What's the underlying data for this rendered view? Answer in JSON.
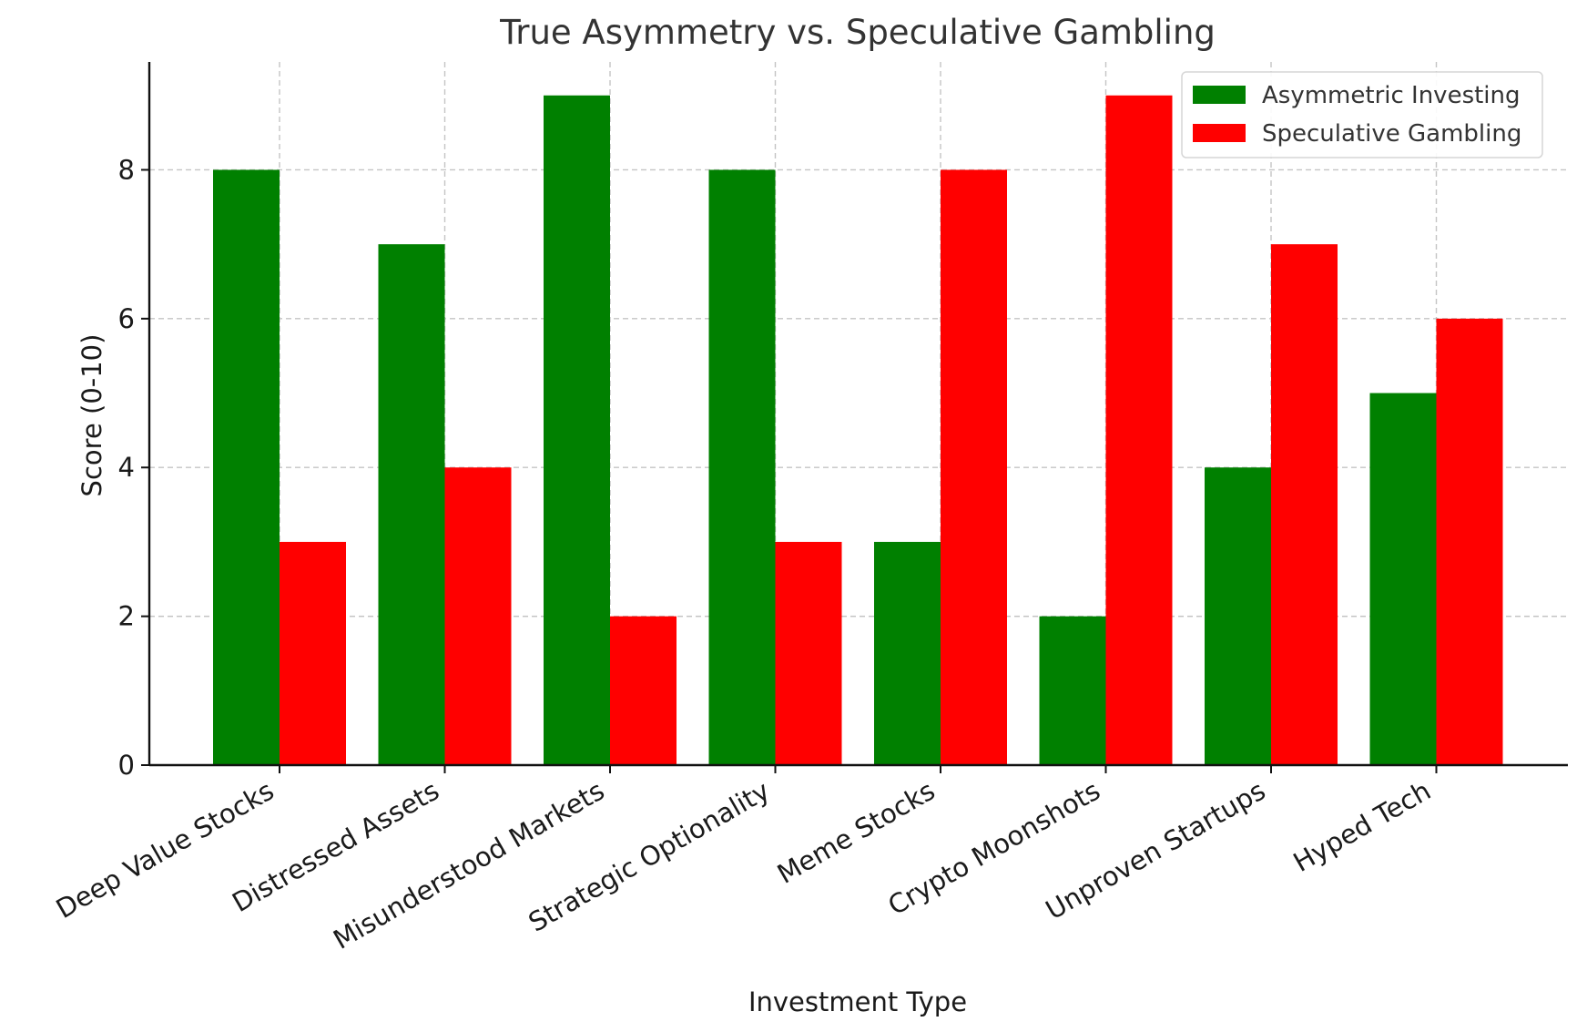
{
  "chart_data": {
    "type": "bar",
    "title": "True Asymmetry vs. Speculative Gambling",
    "xlabel": "Investment Type",
    "ylabel": "Score (0-10)",
    "categories": [
      "Deep Value Stocks",
      "Distressed Assets",
      "Misunderstood Markets",
      "Strategic Optionality",
      "Meme Stocks",
      "Crypto Moonshots",
      "Unproven Startups",
      "Hyped Tech"
    ],
    "series": [
      {
        "name": "Asymmetric Investing",
        "color": "#008000",
        "values": [
          8,
          7,
          9,
          8,
          3,
          2,
          4,
          5
        ]
      },
      {
        "name": "Speculative Gambling",
        "color": "#ff0000",
        "values": [
          3,
          4,
          2,
          3,
          8,
          9,
          7,
          6
        ]
      }
    ],
    "ylim": [
      0,
      9.45
    ],
    "yticks": [
      0,
      2,
      4,
      6,
      8
    ],
    "grid": true,
    "legend_position": "top-right"
  }
}
